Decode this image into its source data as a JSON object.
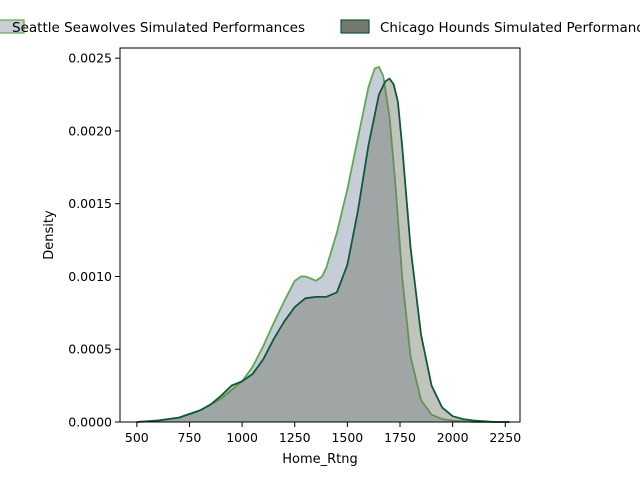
{
  "chart_data": {
    "type": "area",
    "subtype": "kde-density",
    "title": "",
    "xlabel": "Home_Rtng",
    "ylabel": "Density",
    "xlim": [
      420,
      2320
    ],
    "ylim": [
      0,
      0.00257
    ],
    "x_ticks": [
      500,
      750,
      1000,
      1250,
      1500,
      1750,
      2000,
      2250
    ],
    "y_ticks": [
      0.0,
      0.0005,
      0.001,
      0.0015,
      0.002,
      0.0025
    ],
    "y_tick_labels": [
      "0.0000",
      "0.0005",
      "0.0010",
      "0.0015",
      "0.0020",
      "0.0025"
    ],
    "grid": false,
    "legend_position": "top",
    "series": [
      {
        "name": "Seattle Seawolves Simulated Performances",
        "line_color": "#5fa84f",
        "fill_color": "#a9b2c3",
        "fill_opacity": 0.65,
        "x": [
          500,
          600,
          700,
          800,
          850,
          900,
          950,
          1000,
          1050,
          1100,
          1150,
          1200,
          1250,
          1280,
          1300,
          1320,
          1350,
          1380,
          1400,
          1450,
          1500,
          1550,
          1600,
          1630,
          1650,
          1670,
          1700,
          1730,
          1760,
          1800,
          1850,
          1900,
          1950,
          2000,
          2100,
          2200,
          2270
        ],
        "y": [
          0.0,
          1e-05,
          3e-05,
          8e-05,
          0.00012,
          0.00016,
          0.00022,
          0.00028,
          0.00038,
          0.00052,
          0.00068,
          0.00083,
          0.00097,
          0.001,
          0.001,
          0.00099,
          0.00097,
          0.001,
          0.00106,
          0.0013,
          0.0016,
          0.00195,
          0.0023,
          0.00243,
          0.00244,
          0.00238,
          0.0021,
          0.0016,
          0.001,
          0.00045,
          0.00015,
          5e-05,
          2e-05,
          1e-05,
          0.0,
          0.0,
          0.0
        ]
      },
      {
        "name": "Chicago Hounds Simulated Performances",
        "line_color": "#0e5a36",
        "fill_color": "#6b7061",
        "fill_opacity": 0.42,
        "x": [
          500,
          600,
          700,
          800,
          850,
          900,
          950,
          1000,
          1050,
          1100,
          1150,
          1200,
          1250,
          1300,
          1350,
          1400,
          1450,
          1500,
          1550,
          1600,
          1650,
          1680,
          1700,
          1720,
          1740,
          1760,
          1780,
          1800,
          1850,
          1900,
          1950,
          2000,
          2050,
          2100,
          2200,
          2270
        ],
        "y": [
          0.0,
          1e-05,
          3e-05,
          8e-05,
          0.00012,
          0.00018,
          0.00025,
          0.00028,
          0.00033,
          0.00043,
          0.00057,
          0.00069,
          0.00079,
          0.00085,
          0.00086,
          0.00086,
          0.00089,
          0.00108,
          0.00145,
          0.0019,
          0.00225,
          0.00234,
          0.00236,
          0.00232,
          0.0022,
          0.0019,
          0.00155,
          0.0012,
          0.0006,
          0.00025,
          0.0001,
          4e-05,
          2e-05,
          1e-05,
          0.0,
          0.0
        ]
      }
    ]
  }
}
